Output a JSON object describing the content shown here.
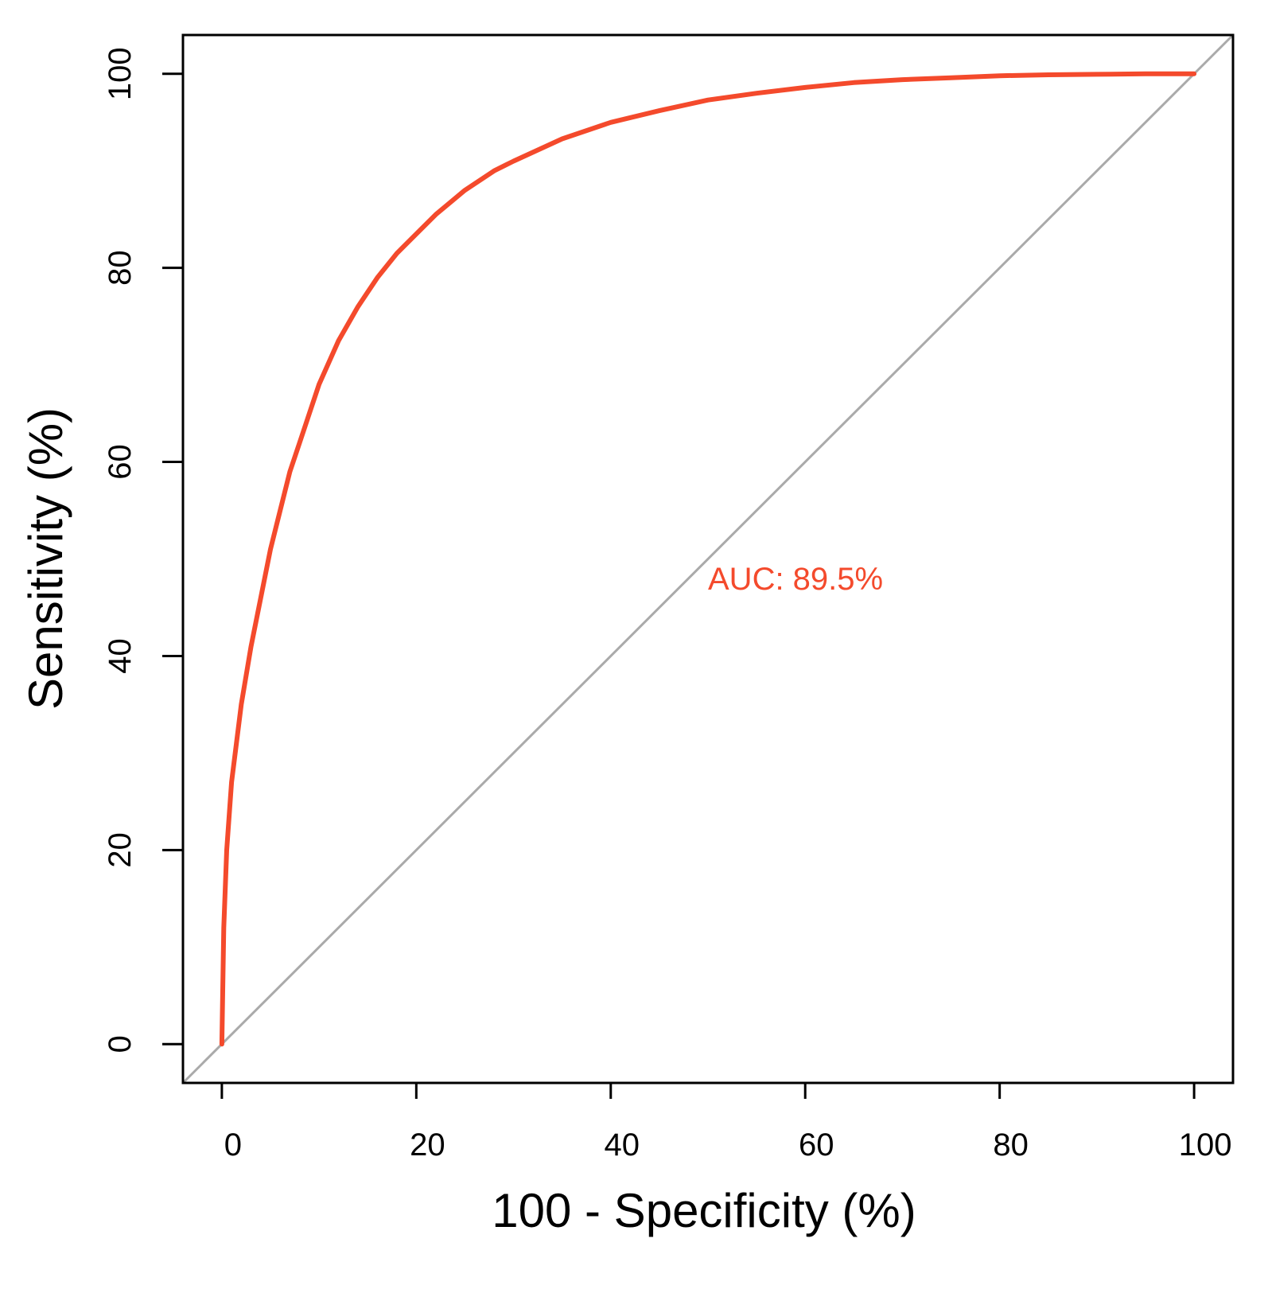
{
  "chart_data": {
    "type": "line",
    "title": "",
    "xlabel": "100 -  Specificity (%)",
    "ylabel": "Sensitivity (%)",
    "xlim": [
      -4,
      104
    ],
    "ylim": [
      -4,
      104
    ],
    "x_ticks": [
      0,
      20,
      40,
      60,
      80,
      100
    ],
    "y_ticks": [
      0,
      20,
      40,
      60,
      80,
      100
    ],
    "x_tick_labels": [
      "0",
      "20",
      "40",
      "60",
      "80",
      "100"
    ],
    "y_tick_labels": [
      "0",
      "20",
      "40",
      "60",
      "80",
      "100"
    ],
    "grid": false,
    "legend": "none",
    "series": [
      {
        "color": "#f44a2c",
        "x": [
          0,
          0.2,
          0.5,
          1,
          1.5,
          2,
          3,
          4,
          5,
          6,
          7,
          8,
          9,
          10,
          12,
          14,
          16,
          18,
          20,
          22,
          25,
          28,
          30,
          35,
          40,
          45,
          50,
          55,
          60,
          65,
          70,
          75,
          80,
          85,
          90,
          95,
          100
        ],
        "y": [
          0,
          12,
          20,
          27,
          31,
          35,
          41,
          46,
          51,
          55,
          59,
          62,
          65,
          68,
          72.5,
          76,
          79,
          81.5,
          83.5,
          85.5,
          88,
          90,
          91,
          93.3,
          95,
          96.2,
          97.3,
          98,
          98.6,
          99.1,
          99.4,
          99.6,
          99.8,
          99.9,
          99.95,
          100,
          100
        ]
      }
    ],
    "reference_line": {
      "color": "#aaaaaa",
      "x": [
        -4,
        104
      ],
      "y": [
        -4,
        104
      ]
    },
    "annotations": [
      {
        "text": "AUC: 89.5%",
        "x": 50,
        "y": 48,
        "color": "#f44a2c"
      }
    ]
  }
}
